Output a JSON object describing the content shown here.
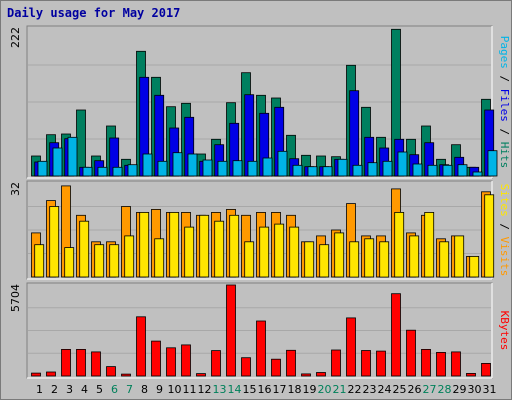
{
  "title": "Daily usage for May 2017",
  "colors": {
    "hits": "#007f5f",
    "files": "#0000e6",
    "pages": "#00b4e6",
    "visits": "#ff9900",
    "sites": "#ffe600",
    "kbytes": "#ff0000",
    "weekend_label": "#00805a",
    "day_label": "#000000",
    "panel_bg": "#c0c0c0"
  },
  "chart_data": [
    {
      "type": "bar",
      "panel": "hits-files-pages",
      "categories": [
        "1",
        "2",
        "3",
        "4",
        "5",
        "6",
        "7",
        "8",
        "9",
        "10",
        "11",
        "12",
        "13",
        "14",
        "15",
        "16",
        "17",
        "18",
        "19",
        "20",
        "21",
        "22",
        "23",
        "24",
        "25",
        "26",
        "27",
        "28",
        "29",
        "30",
        "31"
      ],
      "weekend_days": [
        "6",
        "7",
        "13",
        "14",
        "20",
        "21",
        "27",
        "28"
      ],
      "y_max_label": "222",
      "ylim": [
        0,
        222
      ],
      "series": [
        {
          "name": "Hits",
          "values": [
            30,
            62,
            63,
            99,
            30,
            75,
            25,
            187,
            148,
            104,
            109,
            33,
            55,
            110,
            155,
            121,
            117,
            61,
            31,
            30,
            29,
            166,
            103,
            58,
            220,
            55,
            75,
            25,
            47,
            13,
            115
          ]
        },
        {
          "name": "Files",
          "values": [
            21,
            50,
            56,
            13,
            23,
            57,
            16,
            148,
            121,
            72,
            88,
            22,
            47,
            79,
            122,
            94,
            103,
            26,
            14,
            14,
            25,
            128,
            58,
            42,
            55,
            32,
            50,
            17,
            28,
            13,
            99
          ]
        },
        {
          "name": "Pages",
          "values": [
            22,
            42,
            58,
            13,
            13,
            13,
            17,
            33,
            22,
            35,
            33,
            24,
            22,
            23,
            22,
            27,
            37,
            16,
            14,
            14,
            25,
            16,
            20,
            22,
            36,
            18,
            16,
            16,
            17,
            6,
            38
          ]
        }
      ],
      "right_label": [
        "Pages",
        "Files",
        "Hits"
      ]
    },
    {
      "type": "bar",
      "panel": "visits-sites",
      "categories": [
        "1",
        "2",
        "3",
        "4",
        "5",
        "6",
        "7",
        "8",
        "9",
        "10",
        "11",
        "12",
        "13",
        "14",
        "15",
        "16",
        "17",
        "18",
        "19",
        "20",
        "21",
        "22",
        "23",
        "24",
        "25",
        "26",
        "27",
        "28",
        "29",
        "30",
        "31"
      ],
      "y_max_label": "32",
      "ylim": [
        0,
        32
      ],
      "series": [
        {
          "name": "Visits",
          "values": [
            15,
            26,
            31,
            21,
            12,
            12,
            24,
            22,
            23,
            22,
            22,
            21,
            22,
            23,
            21,
            22,
            22,
            21,
            12,
            14,
            16,
            25,
            14,
            14,
            30,
            15,
            21,
            13,
            14,
            7,
            29
          ]
        },
        {
          "name": "Sites",
          "values": [
            11,
            24,
            10,
            19,
            11,
            11,
            14,
            22,
            13,
            22,
            17,
            21,
            19,
            21,
            12,
            17,
            18,
            17,
            12,
            11,
            15,
            12,
            13,
            12,
            22,
            14,
            22,
            12,
            14,
            7,
            28
          ]
        }
      ],
      "right_label": [
        "Sites",
        "Visits"
      ]
    },
    {
      "type": "bar",
      "panel": "kbytes",
      "categories": [
        "1",
        "2",
        "3",
        "4",
        "5",
        "6",
        "7",
        "8",
        "9",
        "10",
        "11",
        "12",
        "13",
        "14",
        "15",
        "16",
        "17",
        "18",
        "19",
        "20",
        "21",
        "22",
        "23",
        "24",
        "25",
        "26",
        "27",
        "28",
        "29",
        "30",
        "31"
      ],
      "y_max_label": "5704",
      "ylim": [
        0,
        5704
      ],
      "series": [
        {
          "name": "KBytes",
          "values": [
            180,
            250,
            1670,
            1670,
            1510,
            590,
            120,
            3710,
            2190,
            1770,
            1950,
            150,
            1590,
            5704,
            1150,
            3450,
            1050,
            1610,
            130,
            220,
            1630,
            3640,
            1600,
            1560,
            5160,
            2870,
            1670,
            1480,
            1510,
            160,
            790
          ]
        }
      ],
      "right_label": [
        "KBytes"
      ]
    }
  ]
}
